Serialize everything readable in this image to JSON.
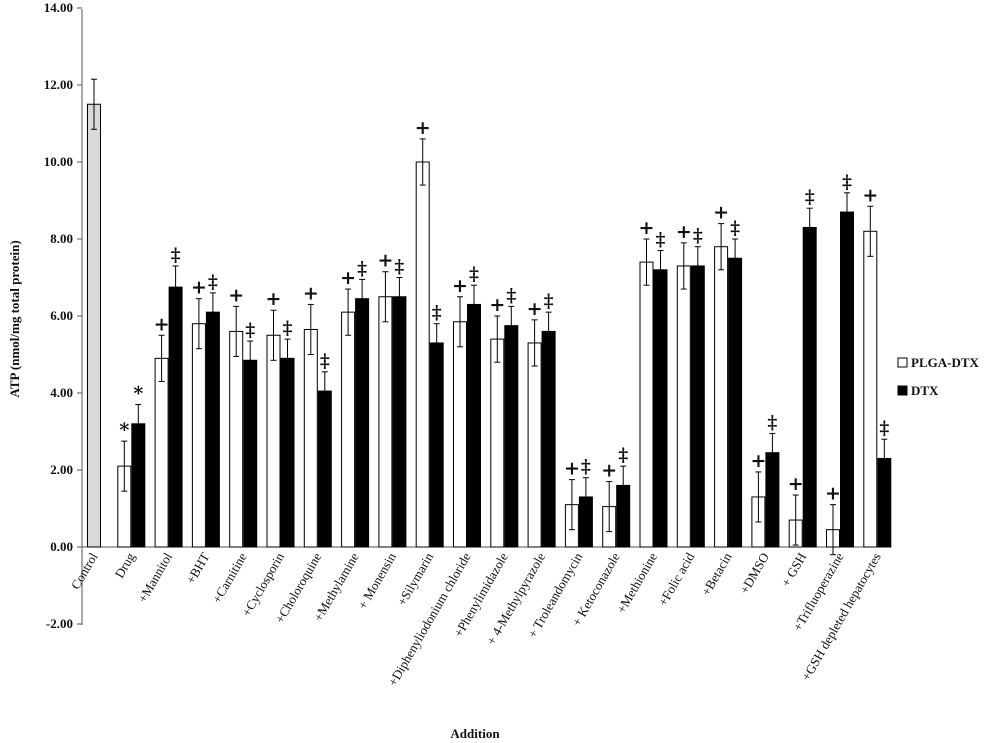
{
  "chart_data": {
    "type": "bar",
    "xlabel": "Addition",
    "ylabel": "ATP (nmol/mg total protein)",
    "ylim": [
      -2.0,
      14.0
    ],
    "yticks": [
      "-2.00",
      "0.00",
      "2.00",
      "4.00",
      "6.00",
      "8.00",
      "10.00",
      "12.00",
      "14.00"
    ],
    "legend_position": "right",
    "grid": false,
    "categories": [
      "Control",
      "Drug",
      "+Mannitol",
      "+BHT",
      "+Carnitine",
      "+Cyclosporin",
      "+Choloroquine",
      "+Methylamine",
      "+ Monensin",
      "+Silymarin",
      "+Diphenyliodonium chloride",
      "+Phenylimidazole",
      "+ 4-Methylpyrazole",
      "+ Troleandomycin",
      "+ Ketoconazole",
      "+Methionine",
      "+Folic acid",
      "+Betacin",
      "+DMSO",
      "+ GSH",
      "+Trifluoperazine",
      "+GSH depleted hepatocytes"
    ],
    "control": {
      "value": 11.5,
      "error": 0.65,
      "color": "#d9d9d9"
    },
    "series": [
      {
        "name": "PLGA-DTX",
        "fill": "#ffffff",
        "values": [
          null,
          2.1,
          4.9,
          5.8,
          5.6,
          5.5,
          5.65,
          6.1,
          6.5,
          10.0,
          5.85,
          5.4,
          5.3,
          1.1,
          1.05,
          7.4,
          7.3,
          7.8,
          1.3,
          0.7,
          0.45,
          8.2
        ],
        "errors": [
          null,
          0.65,
          0.6,
          0.65,
          0.65,
          0.65,
          0.65,
          0.6,
          0.65,
          0.6,
          0.65,
          0.6,
          0.6,
          0.65,
          0.65,
          0.6,
          0.6,
          0.6,
          0.65,
          0.65,
          0.65,
          0.65
        ],
        "marks": [
          null,
          "*",
          "+",
          "+",
          "+",
          "+",
          "+",
          "+",
          "+",
          "+",
          "+",
          "+",
          "+",
          "+",
          "+",
          "+",
          "+",
          "+",
          "+",
          "+",
          "+",
          "+"
        ]
      },
      {
        "name": "DTX",
        "fill": "#000000",
        "values": [
          null,
          3.2,
          6.75,
          6.1,
          4.85,
          4.9,
          4.05,
          6.45,
          6.5,
          5.3,
          6.3,
          5.75,
          5.6,
          1.3,
          1.6,
          7.2,
          7.3,
          7.5,
          2.45,
          8.3,
          8.7,
          2.3
        ],
        "errors": [
          null,
          0.5,
          0.55,
          0.5,
          0.5,
          0.5,
          0.5,
          0.5,
          0.5,
          0.5,
          0.5,
          0.5,
          0.5,
          0.5,
          0.5,
          0.5,
          0.5,
          0.5,
          0.5,
          0.5,
          0.5,
          0.5
        ],
        "marks": [
          null,
          "*",
          "‡",
          "‡",
          "‡",
          "‡",
          "‡",
          "‡",
          "‡",
          "‡",
          "‡",
          "‡",
          "‡",
          "‡",
          "‡",
          "‡",
          "‡",
          "‡",
          "‡",
          "‡",
          "‡",
          "‡"
        ]
      }
    ]
  }
}
